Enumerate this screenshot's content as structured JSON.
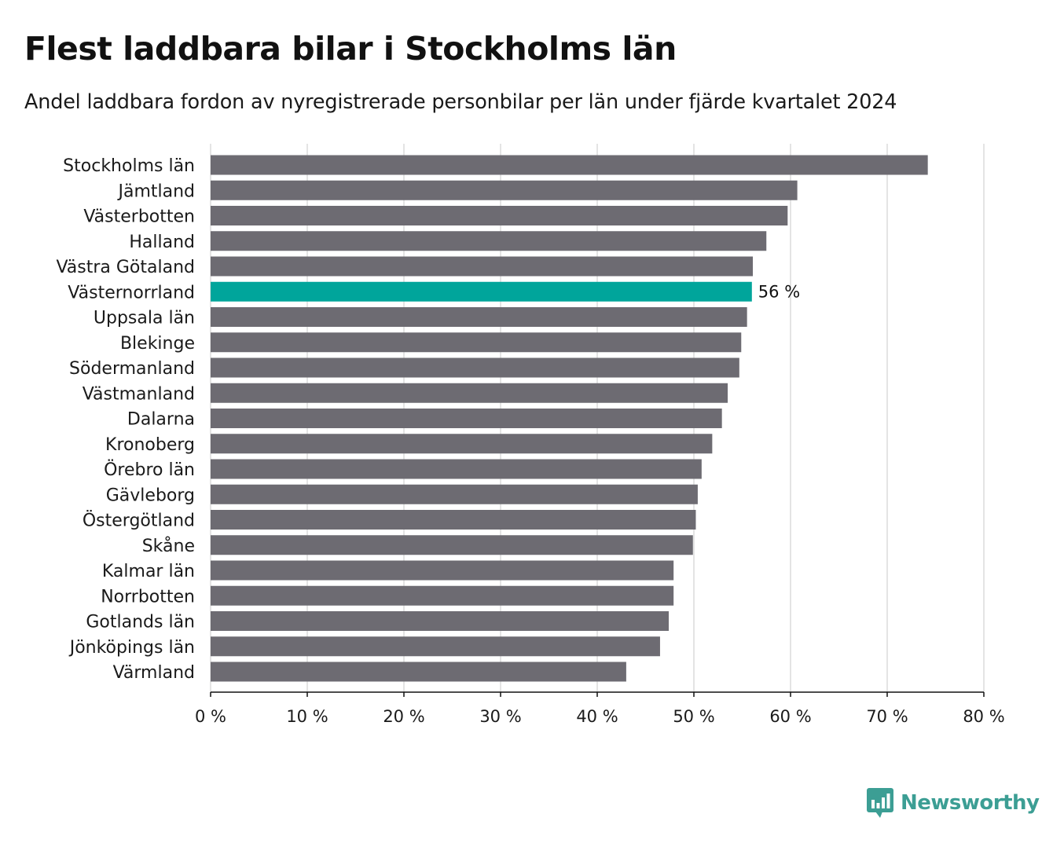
{
  "title": "Flest laddbara bilar i Stockholms län",
  "subtitle": "Andel laddbara fordon av nyregistrerade personbilar per län under fjärde kvartalet 2024",
  "brand": {
    "name": "Newsworthy",
    "color": "#3c9e94"
  },
  "colors": {
    "bar": "#6d6b72",
    "highlight": "#00a59b",
    "grid": "#dcdcdc",
    "axis": "#111111",
    "text": "#1a1a1a"
  },
  "chart_data": {
    "type": "bar",
    "orientation": "horizontal",
    "title": "Flest laddbara bilar i Stockholms län",
    "xlabel": "",
    "ylabel": "",
    "xlim": [
      0,
      80
    ],
    "x_ticks": [
      0,
      10,
      20,
      30,
      40,
      50,
      60,
      70,
      80
    ],
    "tick_suffix": " %",
    "grid": true,
    "categories": [
      "Stockholms län",
      "Jämtland",
      "Västerbotten",
      "Halland",
      "Västra Götaland",
      "Västernorrland",
      "Uppsala län",
      "Blekinge",
      "Södermanland",
      "Västmanland",
      "Dalarna",
      "Kronoberg",
      "Örebro län",
      "Gävleborg",
      "Östergötland",
      "Skåne",
      "Kalmar län",
      "Norrbotten",
      "Gotlands län",
      "Jönköpings län",
      "Värmland"
    ],
    "values": [
      74.2,
      60.7,
      59.7,
      57.5,
      56.1,
      56.0,
      55.5,
      54.9,
      54.7,
      53.5,
      52.9,
      51.9,
      50.8,
      50.4,
      50.2,
      49.9,
      47.9,
      47.9,
      47.4,
      46.5,
      43.0
    ],
    "highlight": "Västernorrland",
    "highlight_label": "56 %"
  }
}
